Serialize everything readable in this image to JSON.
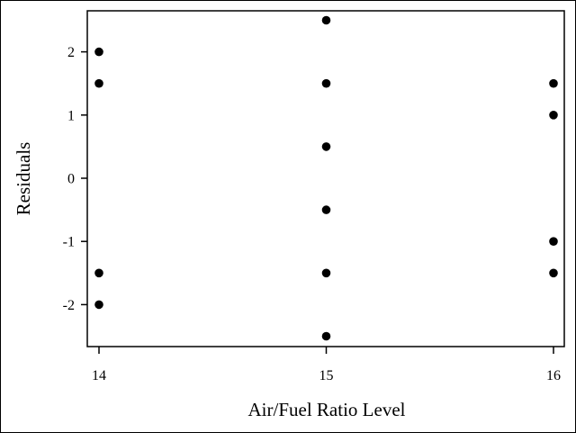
{
  "chart_data": {
    "type": "scatter",
    "title": "",
    "xlabel": "Air/Fuel Ratio Level",
    "ylabel": "Residuals",
    "x_ticks": [
      "14",
      "15",
      "16"
    ],
    "y_ticks": [
      "2",
      "1",
      "0",
      "-1",
      "-2"
    ],
    "xlim": [
      14,
      16
    ],
    "ylim": [
      -2.7,
      2.7
    ],
    "grid": false,
    "marker_color": "#000000",
    "points": [
      {
        "x": 14,
        "y": 2
      },
      {
        "x": 14,
        "y": 1.5
      },
      {
        "x": 14,
        "y": -1.5
      },
      {
        "x": 14,
        "y": -2
      },
      {
        "x": 15,
        "y": 2.5
      },
      {
        "x": 15,
        "y": 1.5
      },
      {
        "x": 15,
        "y": 0.5
      },
      {
        "x": 15,
        "y": -0.5
      },
      {
        "x": 15,
        "y": -1.5
      },
      {
        "x": 15,
        "y": -2.5
      },
      {
        "x": 16,
        "y": 1.5
      },
      {
        "x": 16,
        "y": 1
      },
      {
        "x": 16,
        "y": -1
      },
      {
        "x": 16,
        "y": -1.5
      }
    ]
  }
}
